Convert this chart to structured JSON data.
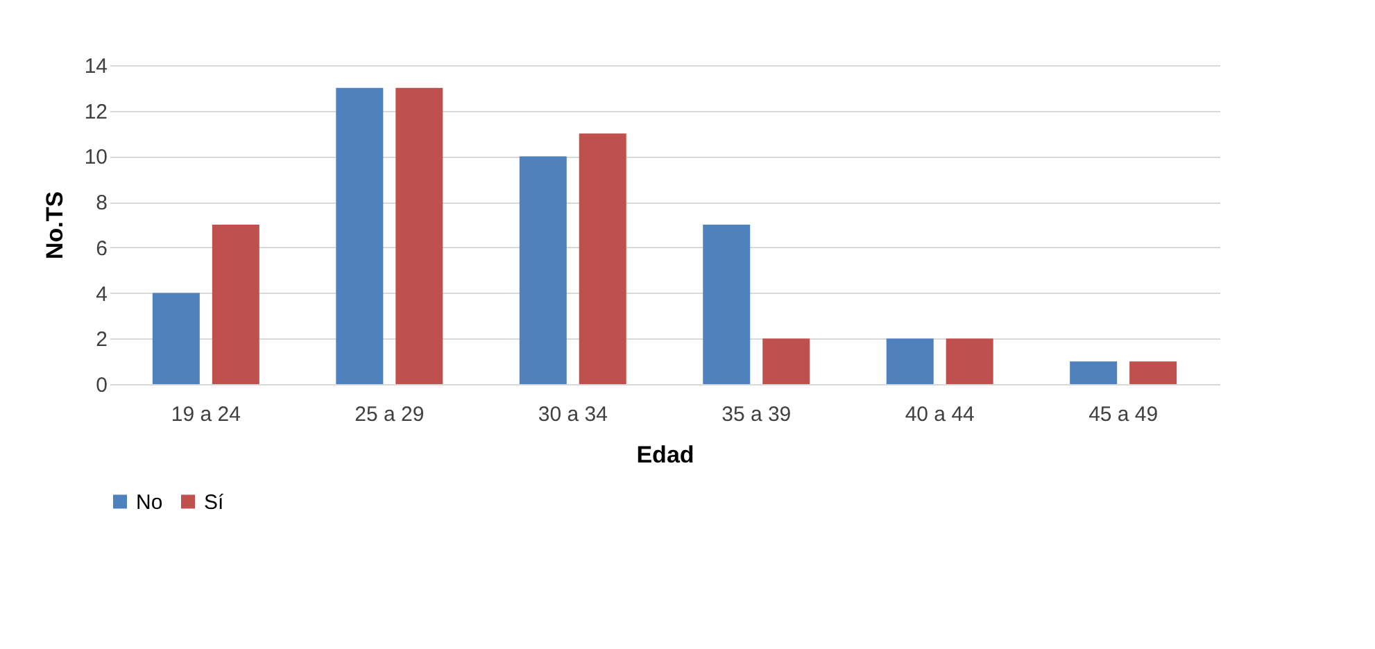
{
  "chart_data": {
    "type": "bar",
    "xlabel": "Edad",
    "ylabel": "No.TS",
    "categories": [
      "19 a 24",
      "25 a 29",
      "30 a 34",
      "35 a 39",
      "40 a 44",
      "45 a 49"
    ],
    "series": [
      {
        "name": "No",
        "color": "#4f81bd",
        "values": [
          4,
          13,
          10,
          7,
          2,
          1
        ]
      },
      {
        "name": "Sí",
        "color": "#c0504d",
        "values": [
          7,
          13,
          11,
          2,
          2,
          1
        ]
      }
    ],
    "ylim": [
      0,
      14
    ],
    "yticks": [
      0,
      2,
      4,
      6,
      8,
      10,
      12,
      14
    ],
    "grid": "y",
    "legend": "bottom"
  }
}
